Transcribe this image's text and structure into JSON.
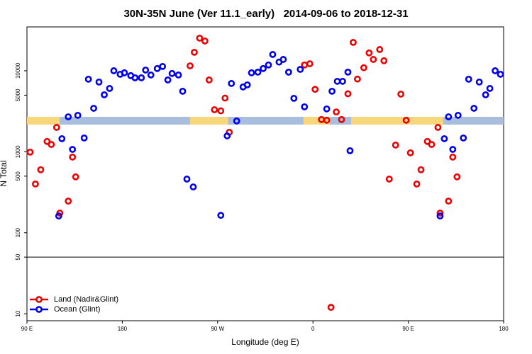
{
  "chart_data": {
    "type": "scatter",
    "title": "30N-35N June (Ver 11.1_early)   2014-09-06 to 2018-12-31",
    "x_label": "Longitude (deg E)",
    "y_label": "N Total",
    "log_y": true,
    "xlim": [
      90,
      540
    ],
    "ylim": [
      8.2,
      34800
    ],
    "xticks": [
      {
        "value": 90,
        "label": "90 E"
      },
      180,
      {
        "value": 270,
        "label": "90 W"
      },
      {
        "value": 360,
        "label": "0"
      },
      {
        "value": 450,
        "label": "90 E"
      },
      {
        "value": 540,
        "label": "180"
      }
    ],
    "yticks": [
      10,
      50,
      100,
      500,
      1000,
      5000,
      10000
    ],
    "hlines": [
      50
    ],
    "legend_position": "lower-left",
    "surface_band": {
      "land_color": "#f7d67c",
      "ocean_color": "#a8bedc",
      "land": [
        [
          90,
          121
        ],
        [
          244,
          280
        ],
        [
          351,
          376
        ],
        [
          396,
          483
        ]
      ]
    },
    "series": [
      {
        "name": "Land (Nadir&Glint)",
        "color": "#ee0000",
        "x": [
          93,
          98,
          103,
          109,
          113,
          118,
          121,
          129,
          133,
          136,
          244,
          248,
          253,
          258,
          262,
          267,
          273,
          277,
          281,
          352,
          357,
          362,
          368,
          373,
          377,
          382,
          387,
          393,
          398,
          402,
          408,
          413,
          417,
          423,
          427,
          432,
          438,
          443,
          448,
          452,
          458,
          462,
          468,
          472,
          478,
          480,
          488,
          492,
          496
        ],
        "values": [
          990,
          400,
          600,
          1340,
          1230,
          2000,
          175,
          246,
          860,
          490,
          11500,
          16900,
          25300,
          23300,
          7700,
          3300,
          3200,
          4600,
          1740,
          11800,
          12200,
          5900,
          2500,
          2450,
          12,
          3100,
          2500,
          5200,
          22400,
          7900,
          10900,
          16600,
          13800,
          18300,
          13300,
          460,
          1210,
          5150,
          2450,
          970,
          400,
          600,
          1340,
          1230,
          2000,
          175,
          246,
          860,
          490
        ]
      },
      {
        "name": "Ocean (Glint)",
        "color": "#0000ee",
        "x": [
          120,
          123,
          129,
          133,
          138,
          144,
          148,
          153,
          158,
          163,
          168,
          172,
          178,
          182,
          188,
          192,
          198,
          202,
          207,
          213,
          218,
          223,
          227,
          233,
          237,
          241,
          247,
          273,
          279,
          283,
          288,
          294,
          298,
          302,
          308,
          313,
          318,
          322,
          328,
          332,
          337,
          342,
          348,
          352,
          373,
          378,
          383,
          388,
          393,
          395,
          480,
          484,
          488,
          492,
          497,
          502,
          507,
          512,
          517,
          523,
          527,
          532,
          537
        ],
        "values": [
          161,
          1450,
          2700,
          1070,
          2820,
          1480,
          7870,
          3440,
          7260,
          5050,
          6050,
          10000,
          9060,
          9440,
          8710,
          8190,
          8190,
          10200,
          8870,
          10650,
          11300,
          7710,
          9250,
          8870,
          5590,
          460,
          368,
          164,
          1570,
          6970,
          2400,
          6310,
          6700,
          9440,
          9620,
          10650,
          11800,
          15900,
          12800,
          13800,
          9620,
          4570,
          10400,
          3590,
          3380,
          5590,
          7410,
          7410,
          9620,
          1030,
          161,
          1450,
          2700,
          1070,
          2820,
          1480,
          7870,
          3440,
          7260,
          5050,
          6050,
          10000,
          9060
        ]
      }
    ]
  }
}
